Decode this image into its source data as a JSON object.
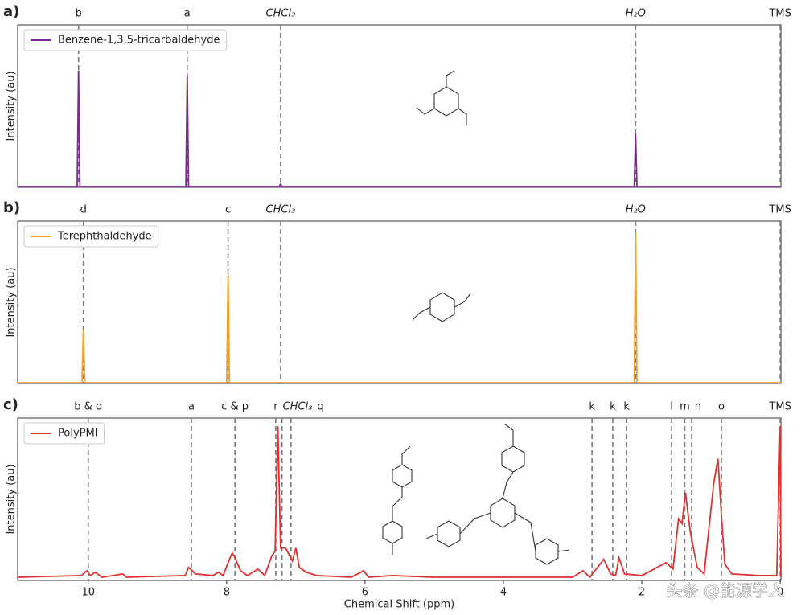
{
  "chart_data": [
    {
      "type": "line",
      "label": "a)",
      "ylabel": "Intensity (au)",
      "xlim": [
        11.02,
        -0.01
      ],
      "ylim": [
        0,
        1
      ],
      "legend": "upper left",
      "series": [
        {
          "name": "Benzene-1,3,5-tricarbaldehyde",
          "color": "#7b2a8f",
          "x": [
            11.02,
            10.16,
            10.14,
            10.12,
            8.59,
            8.57,
            8.55,
            7.24,
            7.22,
            7.2,
            2.11,
            2.09,
            2.07,
            -0.01
          ],
          "values": [
            0.005,
            0.005,
            0.72,
            0.005,
            0.005,
            0.69,
            0.005,
            0.005,
            0.02,
            0.005,
            0.005,
            0.33,
            0.005,
            0.005
          ]
        }
      ],
      "annotations": [
        {
          "label": "b",
          "x": 10.14
        },
        {
          "label": "a",
          "x": 8.57
        },
        {
          "label": "CHCl₃",
          "x": 7.22
        },
        {
          "label": "H₂O",
          "x": 2.09
        },
        {
          "label": "TMS",
          "x": 0
        }
      ]
    },
    {
      "type": "line",
      "label": "b)",
      "ylabel": "Intensity (au)",
      "xlim": [
        11.02,
        -0.01
      ],
      "ylim": [
        0,
        1
      ],
      "legend": "upper left",
      "series": [
        {
          "name": "Terephthaldehyde",
          "color": "#f5a02a",
          "x": [
            11.02,
            10.09,
            10.07,
            10.05,
            8.0,
            7.98,
            7.96,
            2.11,
            2.09,
            2.07,
            -0.01
          ],
          "values": [
            0.005,
            0.005,
            0.33,
            0.005,
            0.005,
            0.67,
            0.005,
            0.005,
            0.93,
            0.005,
            0.005
          ]
        }
      ],
      "annotations": [
        {
          "label": "d",
          "x": 10.07
        },
        {
          "label": "c",
          "x": 7.98
        },
        {
          "label": "CHCl₃",
          "x": 7.22
        },
        {
          "label": "H₂O",
          "x": 2.09
        },
        {
          "label": "TMS",
          "x": 0
        }
      ]
    },
    {
      "type": "line",
      "label": "c)",
      "ylabel": "Intensity (au)",
      "xlabel": "Chemical Shift (ppm)",
      "xlim": [
        11.02,
        -0.01
      ],
      "ylim": [
        0,
        1
      ],
      "legend": "upper left",
      "xticks": [
        10,
        8,
        6,
        4,
        2,
        0
      ],
      "series": [
        {
          "name": "PolyPMI",
          "color": "#e03030",
          "x": [
            11.02,
            10.1,
            10.02,
            9.97,
            9.9,
            9.8,
            9.5,
            9.45,
            8.6,
            8.55,
            8.45,
            8.2,
            8.12,
            8.05,
            7.98,
            7.92,
            7.88,
            7.8,
            7.7,
            7.55,
            7.45,
            7.35,
            7.3,
            7.26,
            7.22,
            7.15,
            7.1,
            7.05,
            7.0,
            6.95,
            6.85,
            6.7,
            6.2,
            6.02,
            5.95,
            5.6,
            5.0,
            3.0,
            2.85,
            2.75,
            2.55,
            2.45,
            2.38,
            2.33,
            2.25,
            2.0,
            1.65,
            1.55,
            1.47,
            1.42,
            1.37,
            1.3,
            1.2,
            1.1,
            0.96,
            0.9,
            0.85,
            0.8,
            0.7,
            0.3,
            0.05,
            0.0,
            -0.01
          ],
          "values": [
            0.02,
            0.03,
            0.06,
            0.03,
            0.05,
            0.02,
            0.04,
            0.02,
            0.03,
            0.08,
            0.04,
            0.03,
            0.05,
            0.03,
            0.11,
            0.17,
            0.14,
            0.06,
            0.03,
            0.07,
            0.03,
            0.15,
            0.18,
            0.95,
            0.2,
            0.2,
            0.16,
            0.12,
            0.2,
            0.08,
            0.05,
            0.03,
            0.02,
            0.06,
            0.02,
            0.03,
            0.02,
            0.02,
            0.06,
            0.02,
            0.13,
            0.04,
            0.03,
            0.14,
            0.04,
            0.03,
            0.11,
            0.07,
            0.38,
            0.35,
            0.54,
            0.3,
            0.08,
            0.04,
            0.6,
            0.75,
            0.4,
            0.1,
            0.04,
            0.03,
            0.03,
            0.95,
            0.02
          ]
        }
      ],
      "annotations": [
        {
          "label": "b & d",
          "x": 10.0
        },
        {
          "label": "a",
          "x": 8.51
        },
        {
          "label": "c & p",
          "x": 7.88
        },
        {
          "label": "r",
          "x": 7.29
        },
        {
          "label": "CHCl₃",
          "x": 7.2
        },
        {
          "label": "q",
          "x": 7.07
        },
        {
          "label": "k",
          "x": 2.72
        },
        {
          "label": "k",
          "x": 2.42
        },
        {
          "label": "k",
          "x": 2.22
        },
        {
          "label": "l",
          "x": 1.57
        },
        {
          "label": "m",
          "x": 1.38
        },
        {
          "label": "n",
          "x": 1.28
        },
        {
          "label": "o",
          "x": 0.85
        },
        {
          "label": "TMS",
          "x": 0
        }
      ]
    }
  ],
  "watermark": "头条 @能源学人"
}
